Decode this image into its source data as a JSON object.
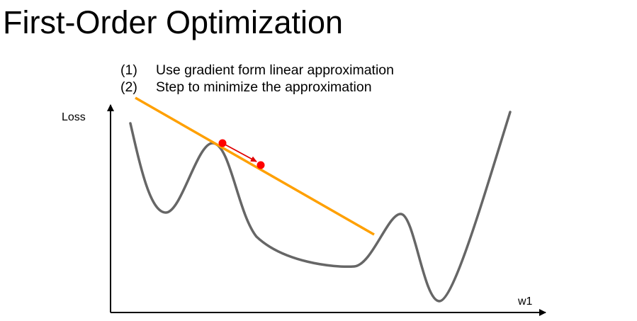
{
  "title": "First-Order Optimization",
  "steps": [
    {
      "num": "(1)",
      "text": "Use gradient form linear approximation"
    },
    {
      "num": "(2)",
      "text": "Step to minimize the approximation"
    }
  ],
  "axes": {
    "y_label": "Loss",
    "x_label": "w1"
  },
  "colors": {
    "curve": "#666666",
    "tangent": "#FFA000",
    "point": "#FF0000",
    "step_arrow": "#E00000",
    "axis": "#000000"
  }
}
